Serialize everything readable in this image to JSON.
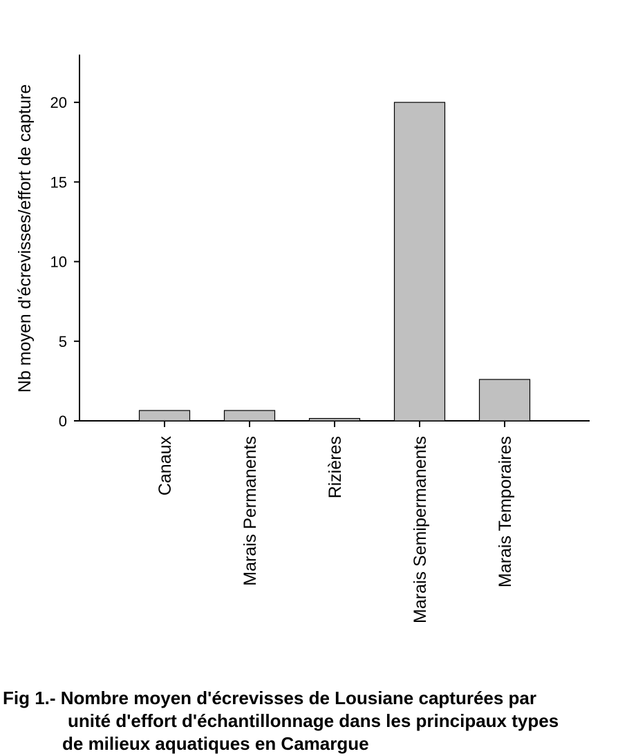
{
  "chart_data": {
    "type": "bar",
    "title": "",
    "xlabel": "",
    "ylabel": "Nb moyen d'écrevisses/effort de capture",
    "categories": [
      "Canaux",
      "Marais Permanents",
      "Rizières",
      "Marais Semipermanents",
      "Marais Temporaires"
    ],
    "values": [
      0.65,
      0.65,
      0.15,
      20.0,
      2.6
    ],
    "ylim": [
      0,
      23
    ],
    "yticks": [
      0,
      5,
      10,
      15,
      20
    ],
    "grid": false,
    "bar_color": "#c0c0c0",
    "bar_edge_color": "#000000"
  },
  "caption": {
    "line1": "Fig 1.- Nombre moyen d'écrevisses de Lousiane capturées par",
    "line2": "unité d'effort d'échantillonnage dans les principaux types",
    "line3": "de milieux aquatiques en Camargue"
  }
}
